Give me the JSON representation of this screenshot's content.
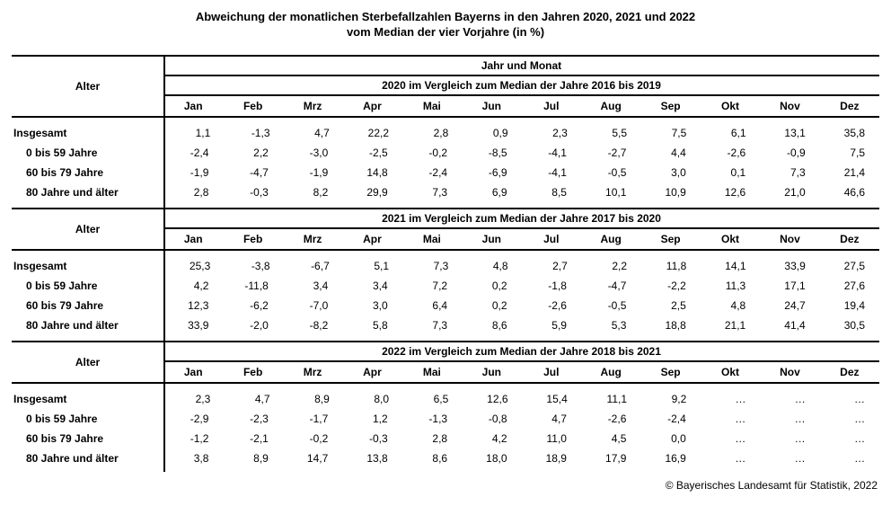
{
  "title": {
    "line1": "Abweichung der monatlichen Sterbefallzahlen Bayerns in den Jahren 2020, 2021 und 2022",
    "line2": "vom Median der vier Vorjahre (in %)"
  },
  "table": {
    "row_header_label": "Alter",
    "top_header": "Jahr und Monat",
    "months": [
      "Jan",
      "Feb",
      "Mrz",
      "Apr",
      "Mai",
      "Jun",
      "Jul",
      "Aug",
      "Sep",
      "Okt",
      "Nov",
      "Dez"
    ],
    "sections": [
      {
        "comparison_label": "2020 im Vergleich zum Median der Jahre 2016 bis 2019",
        "rows": [
          {
            "label": "Insgesamt",
            "indent": false,
            "values": [
              "1,1",
              "-1,3",
              "4,7",
              "22,2",
              "2,8",
              "0,9",
              "2,3",
              "5,5",
              "7,5",
              "6,1",
              "13,1",
              "35,8"
            ]
          },
          {
            "label": "0 bis 59 Jahre",
            "indent": true,
            "values": [
              "-2,4",
              "2,2",
              "-3,0",
              "-2,5",
              "-0,2",
              "-8,5",
              "-4,1",
              "-2,7",
              "4,4",
              "-2,6",
              "-0,9",
              "7,5"
            ]
          },
          {
            "label": "60 bis 79 Jahre",
            "indent": true,
            "values": [
              "-1,9",
              "-4,7",
              "-1,9",
              "14,8",
              "-2,4",
              "-6,9",
              "-4,1",
              "-0,5",
              "3,0",
              "0,1",
              "7,3",
              "21,4"
            ]
          },
          {
            "label": "80 Jahre und älter",
            "indent": true,
            "values": [
              "2,8",
              "-0,3",
              "8,2",
              "29,9",
              "7,3",
              "6,9",
              "8,5",
              "10,1",
              "10,9",
              "12,6",
              "21,0",
              "46,6"
            ]
          }
        ]
      },
      {
        "comparison_label": "2021 im Vergleich zum Median der Jahre 2017 bis 2020",
        "rows": [
          {
            "label": "Insgesamt",
            "indent": false,
            "values": [
              "25,3",
              "-3,8",
              "-6,7",
              "5,1",
              "7,3",
              "4,8",
              "2,7",
              "2,2",
              "11,8",
              "14,1",
              "33,9",
              "27,5"
            ]
          },
          {
            "label": "0 bis 59 Jahre",
            "indent": true,
            "values": [
              "4,2",
              "-11,8",
              "3,4",
              "3,4",
              "7,2",
              "0,2",
              "-1,8",
              "-4,7",
              "-2,2",
              "11,3",
              "17,1",
              "27,6"
            ]
          },
          {
            "label": "60 bis 79 Jahre",
            "indent": true,
            "values": [
              "12,3",
              "-6,2",
              "-7,0",
              "3,0",
              "6,4",
              "0,2",
              "-2,6",
              "-0,5",
              "2,5",
              "4,8",
              "24,7",
              "19,4"
            ]
          },
          {
            "label": "80 Jahre und älter",
            "indent": true,
            "values": [
              "33,9",
              "-2,0",
              "-8,2",
              "5,8",
              "7,3",
              "8,6",
              "5,9",
              "5,3",
              "18,8",
              "21,1",
              "41,4",
              "30,5"
            ]
          }
        ]
      },
      {
        "comparison_label": "2022 im Vergleich zum Median der Jahre 2018 bis 2021",
        "rows": [
          {
            "label": "Insgesamt",
            "indent": false,
            "values": [
              "2,3",
              "4,7",
              "8,9",
              "8,0",
              "6,5",
              "12,6",
              "15,4",
              "11,1",
              "9,2",
              "…",
              "…",
              "…"
            ]
          },
          {
            "label": "0 bis 59 Jahre",
            "indent": true,
            "values": [
              "-2,9",
              "-2,3",
              "-1,7",
              "1,2",
              "-1,3",
              "-0,8",
              "4,7",
              "-2,6",
              "-2,4",
              "…",
              "…",
              "…"
            ]
          },
          {
            "label": "60 bis 79 Jahre",
            "indent": true,
            "values": [
              "-1,2",
              "-2,1",
              "-0,2",
              "-0,3",
              "2,8",
              "4,2",
              "11,0",
              "4,5",
              "0,0",
              "…",
              "…",
              "…"
            ]
          },
          {
            "label": "80 Jahre und älter",
            "indent": true,
            "values": [
              "3,8",
              "8,9",
              "14,7",
              "13,8",
              "8,6",
              "18,0",
              "18,9",
              "17,9",
              "16,9",
              "…",
              "…",
              "…"
            ]
          }
        ]
      }
    ]
  },
  "footer": {
    "copyright": "© Bayerisches Landesamt für Statistik, 2022"
  }
}
